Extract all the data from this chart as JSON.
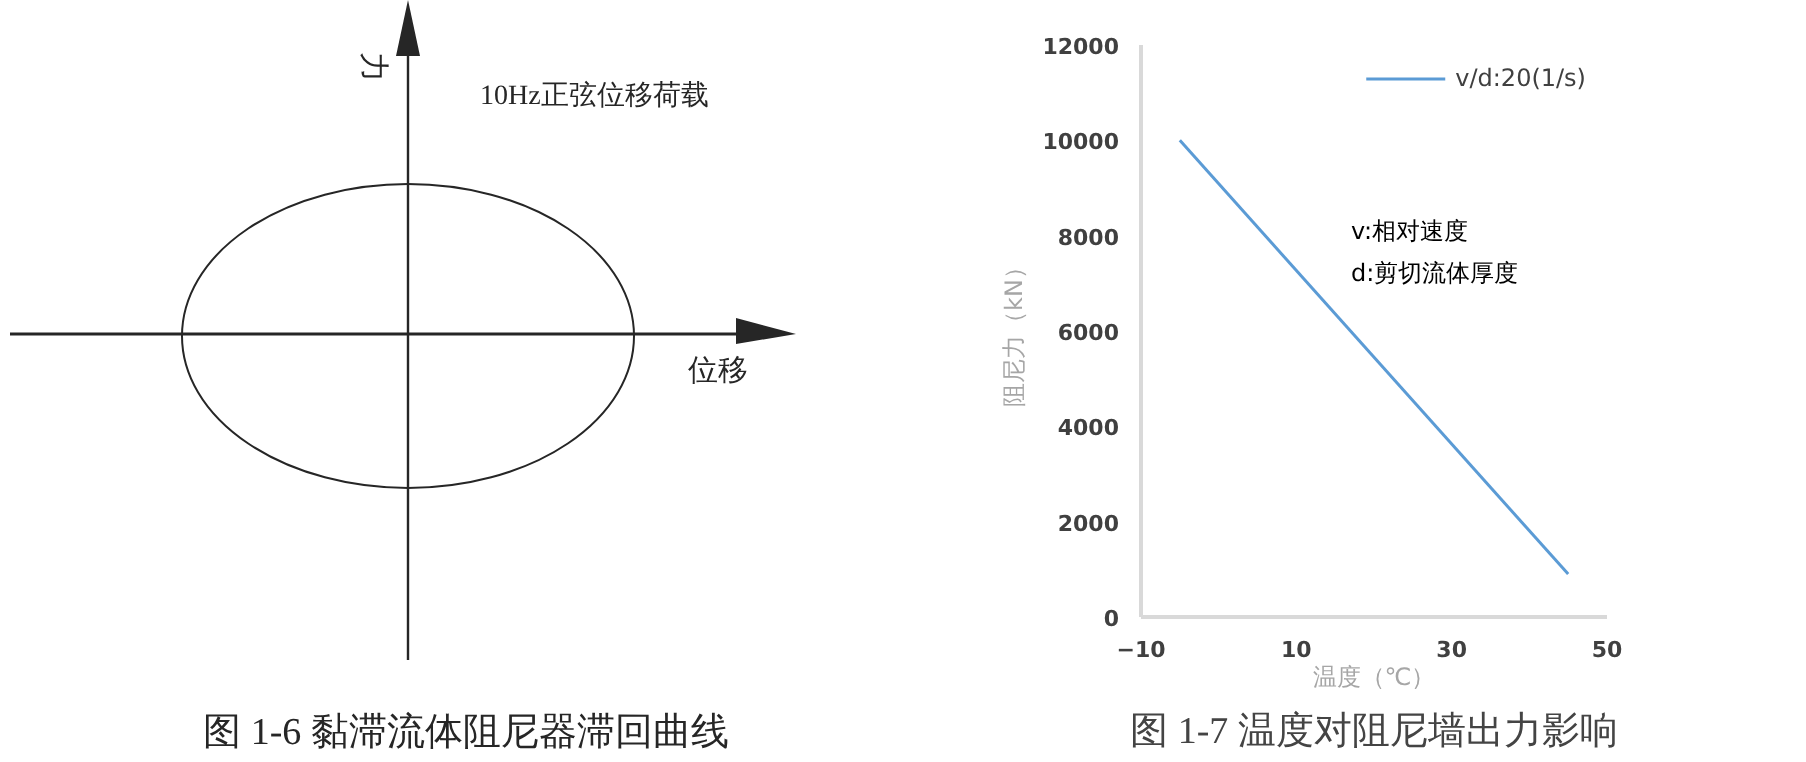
{
  "chart_data": [
    {
      "type": "other",
      "xlabel": "位移",
      "ylabel": "力",
      "annotations": [
        "10Hz正弦位移荷载",
        "图 1-6 黏滞流体阻尼器滞回曲线"
      ]
    },
    {
      "type": "line",
      "xlabel": "温度（℃）",
      "ylabel": "阻尼力（kN）",
      "grid": false,
      "legend": "top right",
      "xlim": [
        -10,
        50
      ],
      "xticks": [
        -10,
        10,
        30,
        50
      ],
      "ylim": [
        0,
        12000
      ],
      "yticks": [
        0,
        2000,
        4000,
        6000,
        8000,
        10000,
        12000
      ],
      "annotations": [
        "v:相对速度",
        "d:剪切流体厚度",
        "图 1-7 温度对阻尼墙出力影响"
      ],
      "series": [
        {
          "name": "v/d:20(1/s)",
          "color": "#5b9bd5",
          "x": [
            -5,
            45
          ],
          "values": [
            10000,
            900
          ]
        }
      ]
    }
  ]
}
